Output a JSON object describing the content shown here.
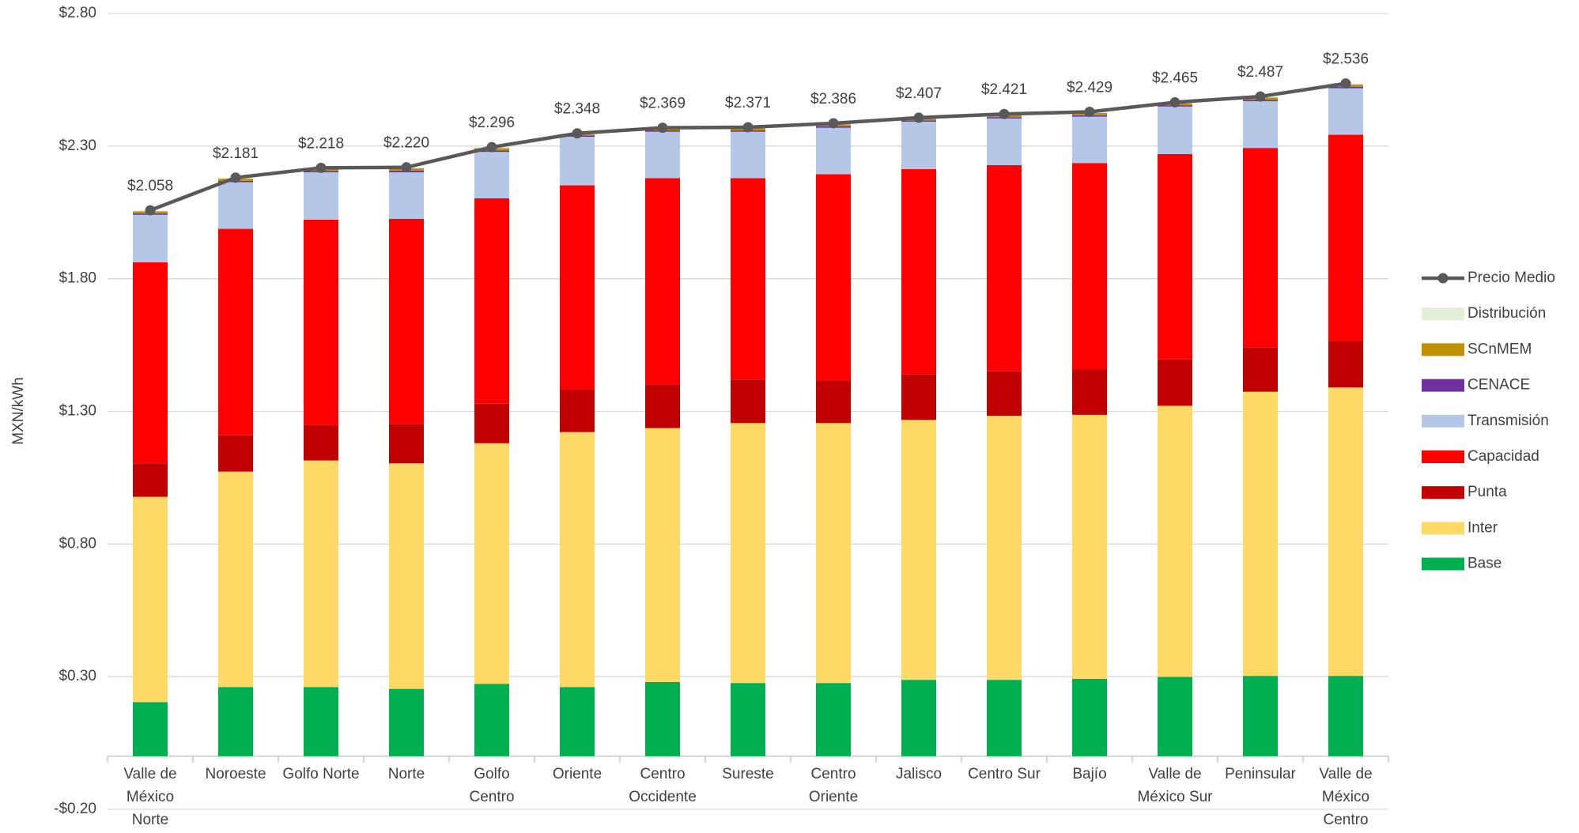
{
  "chart_data": {
    "type": "bar",
    "stacked": true,
    "y_label": "MXN/kWh",
    "categories": [
      "Valle de México Norte",
      "Noroeste",
      "Golfo Norte",
      "Norte",
      "Golfo Centro",
      "Oriente",
      "Centro Occidente",
      "Sureste",
      "Centro Oriente",
      "Jalisco",
      "Centro Sur",
      "Bajío",
      "Valle de México Sur",
      "Peninsular",
      "Valle de México Centro"
    ],
    "series": [
      {
        "name": "Base",
        "color": "#00b050",
        "values": [
          0.204,
          0.261,
          0.261,
          0.254,
          0.273,
          0.261,
          0.28,
          0.276,
          0.276,
          0.288,
          0.288,
          0.292,
          0.299,
          0.303,
          0.303
        ]
      },
      {
        "name": "Inter",
        "color": "#ffd966",
        "values": [
          0.774,
          0.812,
          0.854,
          0.85,
          0.907,
          0.961,
          0.957,
          0.98,
          0.98,
          0.98,
          0.995,
          0.995,
          1.022,
          1.071,
          1.087
        ]
      },
      {
        "name": "Punta",
        "color": "#c00000",
        "values": [
          0.126,
          0.137,
          0.134,
          0.148,
          0.149,
          0.16,
          0.164,
          0.164,
          0.16,
          0.171,
          0.168,
          0.171,
          0.175,
          0.168,
          0.175
        ]
      },
      {
        "name": "Capacidad",
        "color": "#ff0000",
        "values": [
          0.758,
          0.778,
          0.774,
          0.774,
          0.774,
          0.77,
          0.778,
          0.759,
          0.778,
          0.774,
          0.777,
          0.778,
          0.774,
          0.751,
          0.778
        ]
      },
      {
        "name": "Transmisión",
        "color": "#b4c7e7",
        "values": [
          0.179,
          0.176,
          0.178,
          0.175,
          0.175,
          0.183,
          0.175,
          0.175,
          0.175,
          0.179,
          0.176,
          0.175,
          0.179,
          0.176,
          0.175
        ]
      },
      {
        "name": "CENACE",
        "color": "#7030a0",
        "values": [
          0.005,
          0.005,
          0.005,
          0.006,
          0.005,
          0.005,
          0.005,
          0.005,
          0.005,
          0.005,
          0.005,
          0.005,
          0.005,
          0.005,
          0.005
        ]
      },
      {
        "name": "SCnMEM",
        "color": "#bf9000",
        "values": [
          0.008,
          0.008,
          0.008,
          0.009,
          0.009,
          0.004,
          0.006,
          0.008,
          0.008,
          0.006,
          0.008,
          0.009,
          0.007,
          0.009,
          0.009
        ]
      },
      {
        "name": "Distribución",
        "color": "#e2f0d9",
        "values": [
          0.004,
          0.004,
          0.004,
          0.004,
          0.004,
          0.004,
          0.004,
          0.004,
          0.004,
          0.004,
          0.004,
          0.004,
          0.004,
          0.004,
          0.004
        ]
      },
      {
        "name": "Precio Medio",
        "type": "line",
        "color": "#595959",
        "values": [
          2.058,
          2.181,
          2.218,
          2.22,
          2.296,
          2.348,
          2.369,
          2.371,
          2.386,
          2.407,
          2.421,
          2.429,
          2.465,
          2.487,
          2.536
        ],
        "value_labels": [
          "$2.058",
          "$2.181",
          "$2.218",
          "$2.220",
          "$2.296",
          "$2.348",
          "$2.369",
          "$2.371",
          "$2.386",
          "$2.407",
          "$2.421",
          "$2.429",
          "$2.465",
          "$2.487",
          "$2.536"
        ]
      }
    ],
    "ylim": [
      -0.2,
      2.8
    ],
    "yticks": [
      {
        "value": -0.2,
        "label": "-$0.20"
      },
      {
        "value": 0.3,
        "label": "$0.30"
      },
      {
        "value": 0.8,
        "label": "$0.80"
      },
      {
        "value": 1.3,
        "label": "$1.30"
      },
      {
        "value": 1.8,
        "label": "$1.80"
      },
      {
        "value": 2.3,
        "label": "$2.30"
      },
      {
        "value": 2.8,
        "label": "$2.80"
      }
    ],
    "grid": true,
    "legend": "right"
  }
}
